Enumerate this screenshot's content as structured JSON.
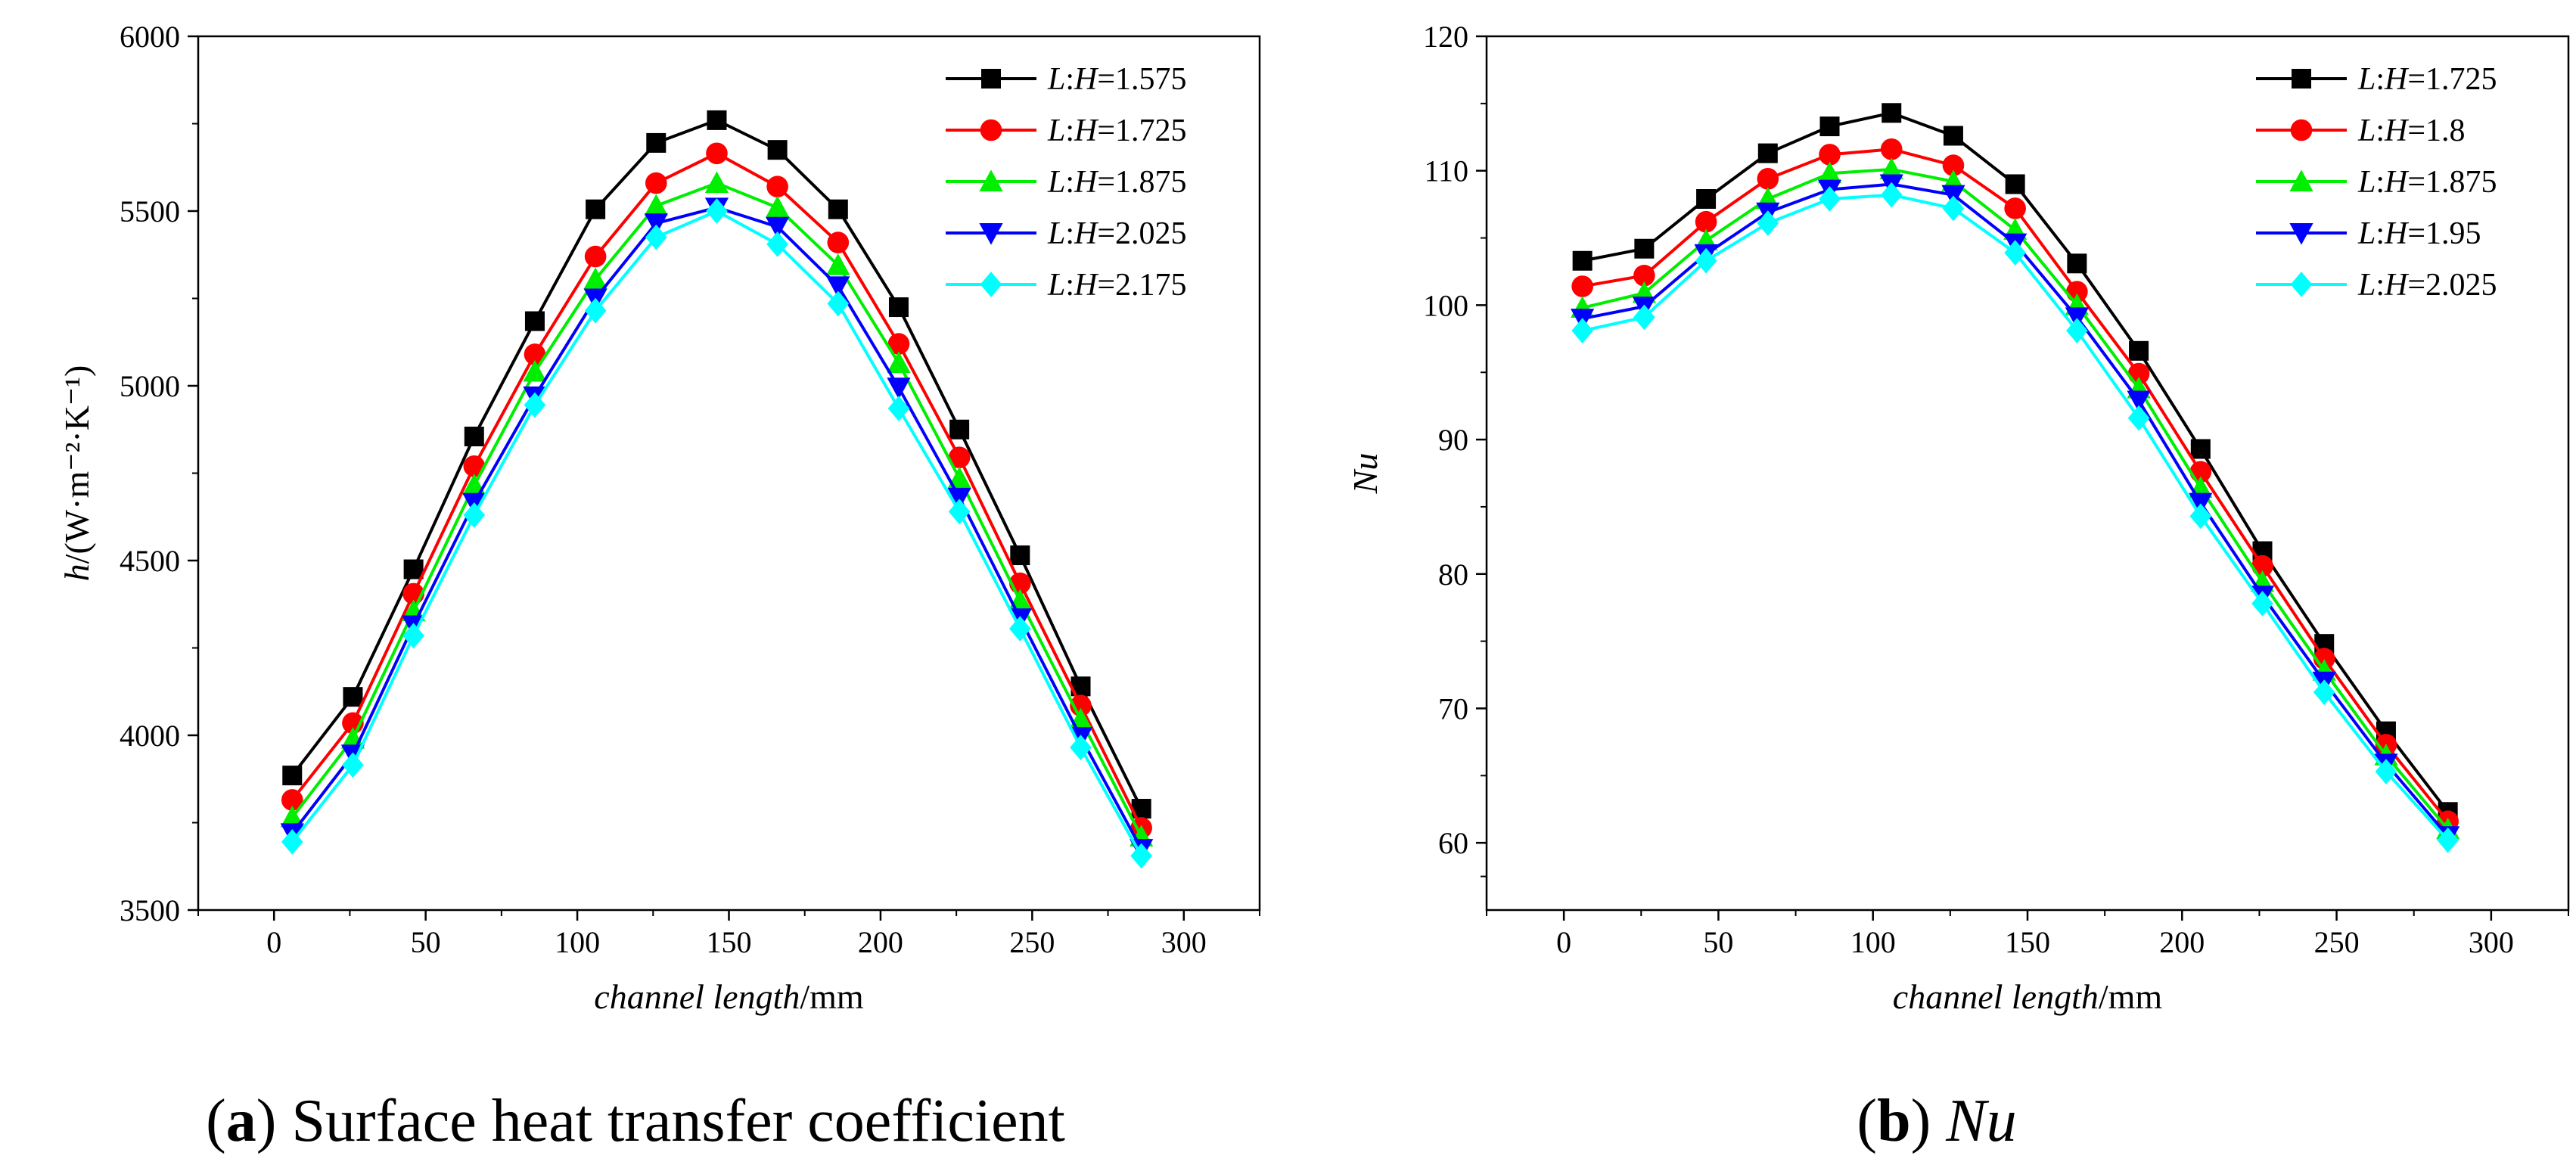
{
  "chart_data": [
    {
      "type": "line",
      "id": "a",
      "caption_letter": "a",
      "caption_text": " Surface heat transfer coefficient",
      "xlabel_italic": "channel length",
      "xlabel_unit": "/mm",
      "ylabel_var": "h",
      "ylabel_unit": "/(W·m⁻²·K⁻¹)",
      "xlim": [
        -25,
        325
      ],
      "ylim": [
        3500,
        6000
      ],
      "xticks": [
        0,
        50,
        100,
        150,
        200,
        250,
        300
      ],
      "yticks": [
        3500,
        4000,
        4500,
        5000,
        5500,
        6000
      ],
      "x": [
        6,
        26,
        46,
        66,
        86,
        106,
        126,
        146,
        166,
        186,
        206,
        226,
        246,
        266,
        286
      ],
      "series": [
        {
          "name": "L:H=1.575",
          "ratio_prefix": "L",
          "ratio_sep": ":",
          "ratio_mid": "H",
          "ratio_value": "=1.575",
          "color": "#000000",
          "marker": "square",
          "values": [
            3885,
            4110,
            4475,
            4855,
            5185,
            5505,
            5695,
            5760,
            5675,
            5505,
            5225,
            4875,
            4515,
            4140,
            3790
          ]
        },
        {
          "name": "L:H=1.725",
          "ratio_prefix": "L",
          "ratio_sep": ":",
          "ratio_mid": "H",
          "ratio_value": "=1.725",
          "color": "#ff0000",
          "marker": "circle",
          "values": [
            3815,
            4035,
            4405,
            4770,
            5090,
            5370,
            5580,
            5665,
            5570,
            5410,
            5120,
            4795,
            4435,
            4085,
            3735
          ]
        },
        {
          "name": "L:H=1.875",
          "ratio_prefix": "L",
          "ratio_sep": ":",
          "ratio_mid": "H",
          "ratio_value": "=1.875",
          "color": "#00ee00",
          "marker": "triangle-up",
          "values": [
            3765,
            3990,
            4355,
            4715,
            5040,
            5305,
            5515,
            5580,
            5510,
            5345,
            5065,
            4735,
            4385,
            4045,
            3710
          ]
        },
        {
          "name": "L:H=2.025",
          "ratio_prefix": "L",
          "ratio_sep": ":",
          "ratio_mid": "H",
          "ratio_value": "=2.025",
          "color": "#0000ff",
          "marker": "triangle-down",
          "values": [
            3720,
            3945,
            4315,
            4665,
            4970,
            5250,
            5465,
            5510,
            5455,
            5285,
            4995,
            4680,
            4335,
            3995,
            3675
          ]
        },
        {
          "name": "L:H=2.175",
          "ratio_prefix": "L",
          "ratio_sep": ":",
          "ratio_mid": "H",
          "ratio_value": "=2.175",
          "color": "#00ffff",
          "marker": "diamond",
          "values": [
            3695,
            3915,
            4285,
            4630,
            4945,
            5215,
            5425,
            5500,
            5405,
            5235,
            4935,
            4640,
            4305,
            3965,
            3655
          ]
        }
      ]
    },
    {
      "type": "line",
      "id": "b",
      "caption_letter": "b",
      "caption_text": "Nu",
      "xlabel_italic": "channel length",
      "xlabel_unit": "/mm",
      "ylabel_var": "Nu",
      "ylabel_unit": "",
      "xlim": [
        -25,
        325
      ],
      "ylim": [
        55,
        120
      ],
      "xticks": [
        0,
        50,
        100,
        150,
        200,
        250,
        300
      ],
      "yticks": [
        60,
        70,
        80,
        90,
        100,
        110,
        120
      ],
      "x": [
        6,
        26,
        46,
        66,
        86,
        106,
        126,
        146,
        166,
        186,
        206,
        226,
        246,
        266,
        286
      ],
      "series": [
        {
          "name": "L:H=1.725",
          "ratio_prefix": "L",
          "ratio_sep": ":",
          "ratio_mid": "H",
          "ratio_value": "=1.725",
          "color": "#000000",
          "marker": "square",
          "values": [
            103.3,
            104.2,
            107.9,
            111.3,
            113.3,
            114.3,
            112.6,
            109.0,
            103.1,
            96.6,
            89.3,
            81.7,
            74.8,
            68.3,
            62.3
          ]
        },
        {
          "name": "L:H=1.8",
          "ratio_prefix": "L",
          "ratio_sep": ":",
          "ratio_mid": "H",
          "ratio_value": "=1.8",
          "color": "#ff0000",
          "marker": "circle",
          "values": [
            101.4,
            102.2,
            106.2,
            109.4,
            111.2,
            111.6,
            110.4,
            107.2,
            101.0,
            94.9,
            87.6,
            80.6,
            73.7,
            67.3,
            61.6
          ]
        },
        {
          "name": "L:H=1.875",
          "ratio_prefix": "L",
          "ratio_sep": ":",
          "ratio_mid": "H",
          "ratio_value": "=1.875",
          "color": "#00ee00",
          "marker": "triangle-up",
          "values": [
            99.8,
            100.9,
            104.8,
            107.9,
            109.8,
            110.1,
            109.2,
            105.6,
            100.0,
            93.8,
            86.4,
            79.4,
            72.8,
            66.5,
            61.0
          ]
        },
        {
          "name": "L:H=1.95",
          "ratio_prefix": "L",
          "ratio_sep": ":",
          "ratio_mid": "H",
          "ratio_value": "=1.95",
          "color": "#0000ff",
          "marker": "triangle-down",
          "values": [
            99.0,
            99.9,
            103.8,
            106.9,
            108.6,
            109.0,
            108.2,
            104.6,
            99.1,
            92.9,
            85.3,
            78.4,
            72.0,
            65.9,
            60.5
          ]
        },
        {
          "name": "L:H=2.025",
          "ratio_prefix": "L",
          "ratio_sep": ":",
          "ratio_mid": "H",
          "ratio_value": "=2.025",
          "color": "#00ffff",
          "marker": "diamond",
          "values": [
            98.1,
            99.1,
            103.3,
            106.1,
            107.9,
            108.2,
            107.2,
            103.9,
            98.1,
            91.6,
            84.3,
            77.8,
            71.2,
            65.3,
            60.2
          ]
        }
      ]
    }
  ]
}
